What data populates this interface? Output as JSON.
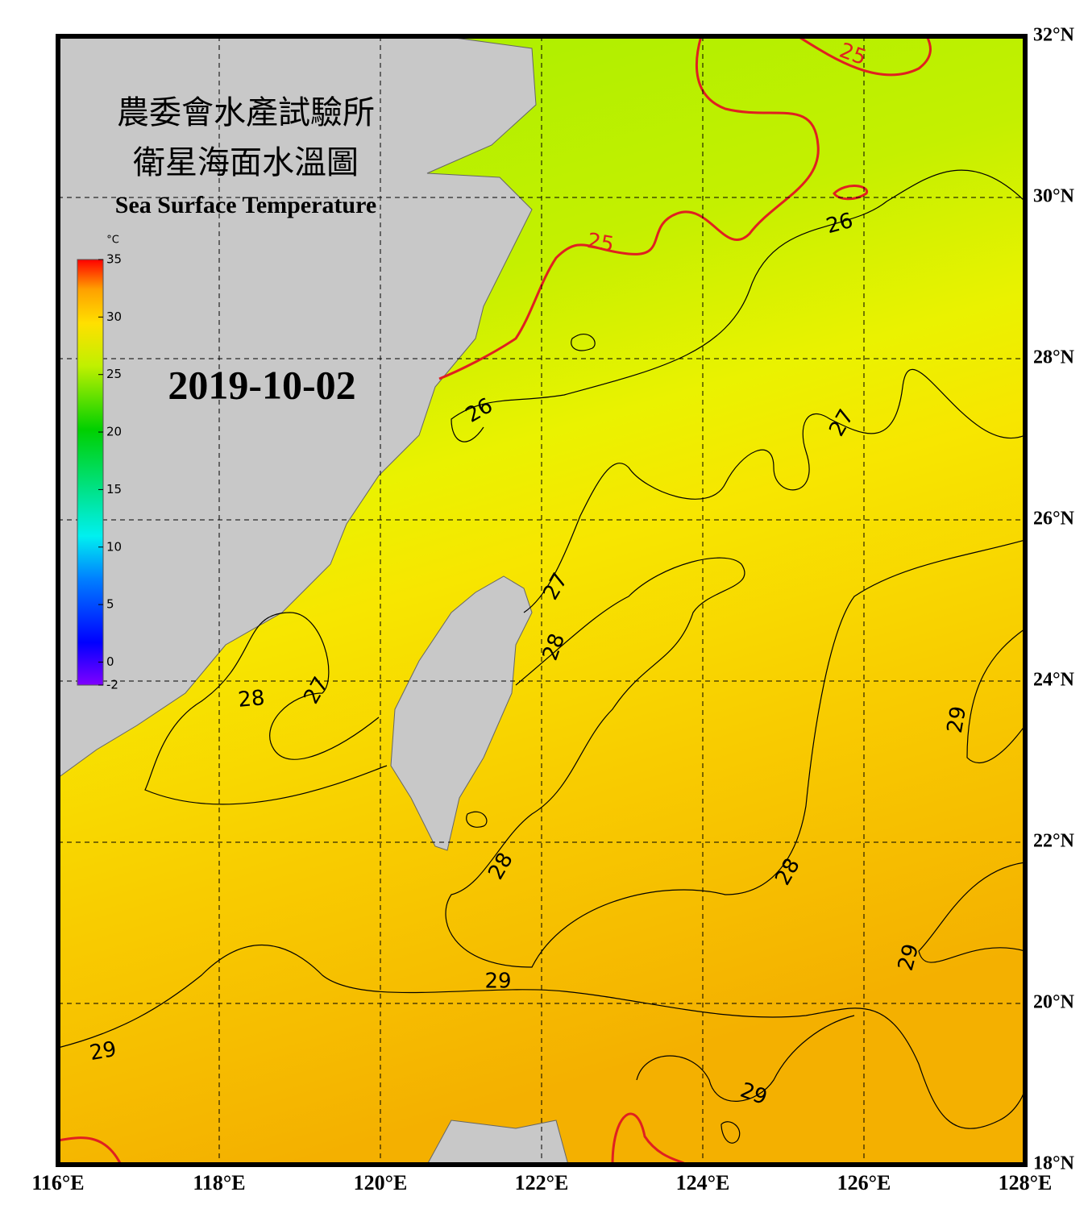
{
  "header": {
    "title_zh": "農委會水產試驗所",
    "subtitle_zh": "衛星海面水溫圖",
    "title_en": "Sea Surface Temperature",
    "date": "2019-10-02"
  },
  "colorbar": {
    "unit": "°C",
    "range": [
      -2,
      35
    ],
    "ticks": [
      35,
      30,
      25,
      20,
      15,
      10,
      5,
      0,
      -2
    ]
  },
  "map": {
    "lon_range": [
      116,
      128
    ],
    "lat_range": [
      18,
      32
    ],
    "lon_ticks": [
      {
        "value": 116,
        "label": "116°E"
      },
      {
        "value": 118,
        "label": "118°E"
      },
      {
        "value": 120,
        "label": "120°E"
      },
      {
        "value": 122,
        "label": "122°E"
      },
      {
        "value": 124,
        "label": "124°E"
      },
      {
        "value": 126,
        "label": "126°E"
      },
      {
        "value": 128,
        "label": "128°E"
      }
    ],
    "lat_ticks": [
      {
        "value": 32,
        "label": "32°N"
      },
      {
        "value": 30,
        "label": "30°N"
      },
      {
        "value": 28,
        "label": "28°N"
      },
      {
        "value": 26,
        "label": "26°N"
      },
      {
        "value": 24,
        "label": "24°N"
      },
      {
        "value": 22,
        "label": "22°N"
      },
      {
        "value": 20,
        "label": "20°N"
      },
      {
        "value": 18,
        "label": "18°N"
      }
    ],
    "contour_labels": [
      25,
      25,
      26,
      26,
      27,
      27,
      27,
      28,
      28,
      28,
      28,
      29,
      29,
      29,
      29,
      29
    ]
  }
}
